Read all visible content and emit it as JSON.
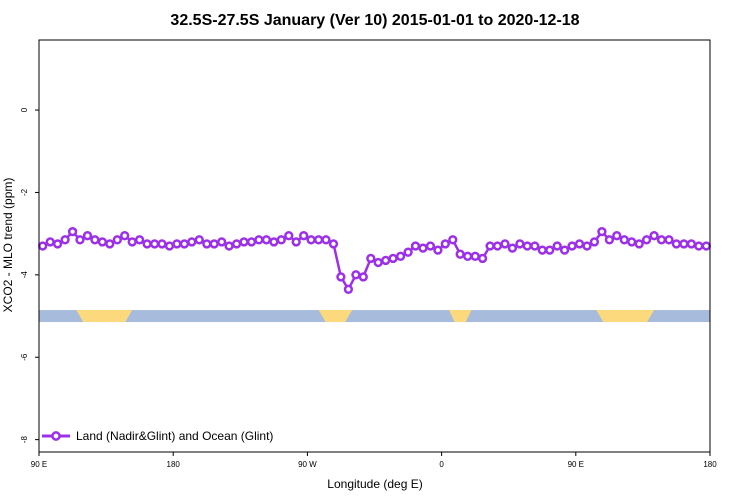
{
  "chart_data": {
    "type": "line",
    "title": "32.5S-27.5S January (Ver 10)   2015-01-01 to 2020-12-18",
    "xlabel": "Longitude (deg E)",
    "ylabel": "XCO2 - MLO trend (ppm)",
    "xlim": [
      90,
      450
    ],
    "ylim": [
      -8.3,
      1.7
    ],
    "x_ticks": [
      {
        "value": 90,
        "label": "90 E"
      },
      {
        "value": 162,
        "label": "180"
      },
      {
        "value": 234,
        "label": "90 W"
      },
      {
        "value": 306,
        "label": "0"
      },
      {
        "value": 378,
        "label": "90 E"
      },
      {
        "value": 450,
        "label": "180"
      }
    ],
    "y_ticks": [
      {
        "value": 0,
        "label": "0"
      },
      {
        "value": -2,
        "label": "-2"
      },
      {
        "value": -4,
        "label": "-4"
      },
      {
        "value": -6,
        "label": "-6"
      },
      {
        "value": -8,
        "label": "-8"
      }
    ],
    "grid": false,
    "legend_position": "bottom-left",
    "series": [
      {
        "name": "Land (Nadir&Glint) and Ocean (Glint)",
        "color": "#9b30e8",
        "x": [
          92,
          96,
          100,
          104,
          108,
          112,
          116,
          120,
          124,
          128,
          132,
          136,
          140,
          144,
          148,
          152,
          156,
          160,
          164,
          168,
          172,
          176,
          180,
          184,
          188,
          192,
          196,
          200,
          204,
          208,
          212,
          216,
          220,
          224,
          228,
          232,
          236,
          240,
          244,
          248,
          252,
          256,
          260,
          264,
          268,
          272,
          276,
          280,
          284,
          288,
          292,
          296,
          300,
          304,
          308,
          312,
          316,
          320,
          324,
          328,
          332,
          336,
          340,
          344,
          348,
          352,
          356,
          360,
          364,
          368,
          372,
          376,
          380,
          384,
          388,
          392,
          396,
          400,
          404,
          408,
          412,
          416,
          420,
          424,
          428,
          432,
          436,
          440,
          444,
          448
        ],
        "y": [
          -3.3,
          -3.2,
          -3.25,
          -3.15,
          -2.95,
          -3.15,
          -3.05,
          -3.15,
          -3.2,
          -3.25,
          -3.15,
          -3.05,
          -3.2,
          -3.15,
          -3.25,
          -3.25,
          -3.25,
          -3.3,
          -3.25,
          -3.25,
          -3.2,
          -3.15,
          -3.25,
          -3.25,
          -3.2,
          -3.3,
          -3.25,
          -3.2,
          -3.2,
          -3.15,
          -3.15,
          -3.2,
          -3.15,
          -3.05,
          -3.2,
          -3.05,
          -3.15,
          -3.15,
          -3.15,
          -3.25,
          -4.05,
          -4.35,
          -4.0,
          -4.05,
          -3.6,
          -3.7,
          -3.65,
          -3.6,
          -3.55,
          -3.45,
          -3.3,
          -3.35,
          -3.3,
          -3.4,
          -3.25,
          -3.15,
          -3.5,
          -3.55,
          -3.55,
          -3.6,
          -3.3,
          -3.3,
          -3.25,
          -3.35,
          -3.25,
          -3.3,
          -3.3,
          -3.4,
          -3.4,
          -3.3,
          -3.4,
          -3.3,
          -3.25,
          -3.3,
          -3.2,
          -2.95,
          -3.15,
          -3.05,
          -3.15,
          -3.2,
          -3.25,
          -3.15,
          -3.05,
          -3.15,
          -3.15,
          -3.25,
          -3.25,
          -3.25,
          -3.3,
          -3.3
        ]
      }
    ],
    "surface_bar": {
      "y": -5.0,
      "ocean_color": "#a7bcdc",
      "land_color": "#fcd97c",
      "land_segments": [
        [
          110,
          140
        ],
        [
          240,
          258
        ],
        [
          310,
          322
        ],
        [
          389,
          420
        ]
      ]
    }
  }
}
